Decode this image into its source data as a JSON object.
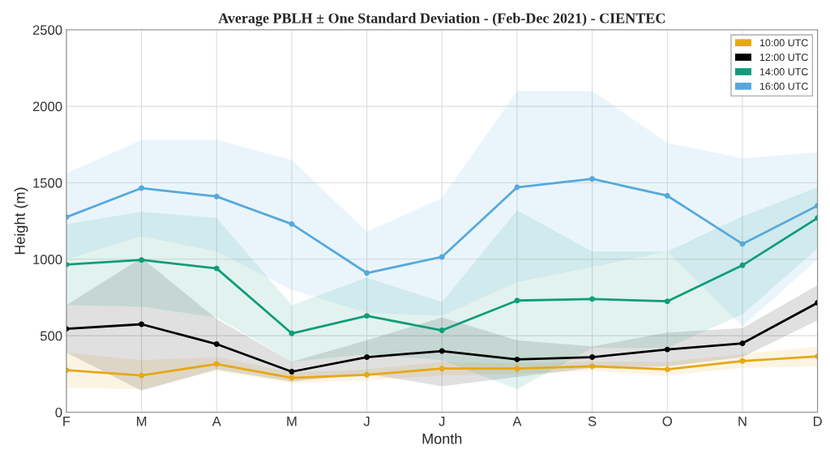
{
  "chart_data": {
    "type": "line",
    "title": "Average PBLH ± One Standard Deviation - (Feb-Dec 2021) - CIENTEC",
    "xlabel": "Month",
    "ylabel": "Height (m)",
    "categories": [
      "F",
      "M",
      "A",
      "M",
      "J",
      "J",
      "A",
      "S",
      "O",
      "N",
      "D"
    ],
    "series": [
      {
        "name": "10:00 UTC",
        "color": "#e6a817",
        "values": [
          275,
          240,
          315,
          225,
          245,
          285,
          285,
          300,
          280,
          335,
          365
        ],
        "upper": [
          390,
          340,
          360,
          260,
          280,
          330,
          320,
          330,
          330,
          380,
          430
        ],
        "lower": [
          160,
          150,
          270,
          190,
          210,
          240,
          250,
          270,
          240,
          290,
          300
        ]
      },
      {
        "name": "12:00 UTC",
        "color": "#000000",
        "values": [
          545,
          575,
          445,
          265,
          360,
          400,
          345,
          360,
          410,
          450,
          715
        ],
        "upper": [
          700,
          1010,
          610,
          330,
          470,
          620,
          470,
          430,
          520,
          550,
          830
        ],
        "lower": [
          390,
          140,
          280,
          200,
          250,
          170,
          230,
          290,
          300,
          360,
          600
        ]
      },
      {
        "name": "14:00 UTC",
        "color": "#0f9d7a",
        "values": [
          965,
          995,
          940,
          515,
          630,
          535,
          730,
          740,
          725,
          960,
          1270
        ],
        "upper": [
          1230,
          1310,
          1270,
          700,
          880,
          720,
          1320,
          1050,
          1050,
          1280,
          1470
        ],
        "lower": [
          700,
          690,
          620,
          330,
          380,
          340,
          150,
          420,
          420,
          640,
          1070
        ]
      },
      {
        "name": "16:00 UTC",
        "color": "#56a9dc",
        "values": [
          1275,
          1465,
          1410,
          1230,
          910,
          1015,
          1470,
          1525,
          1415,
          1100,
          1350
        ],
        "upper": [
          1560,
          1780,
          1780,
          1650,
          1180,
          1400,
          2100,
          2100,
          1760,
          1660,
          1700
        ],
        "lower": [
          1000,
          1150,
          1050,
          800,
          650,
          630,
          850,
          950,
          1050,
          560,
          1000
        ]
      }
    ],
    "ylim": [
      0,
      2500
    ],
    "yticks": [
      0,
      500,
      1000,
      1500,
      2000,
      2500
    ],
    "grid": true,
    "legend": "top right",
    "marker": "circle",
    "line_style": "solid"
  }
}
